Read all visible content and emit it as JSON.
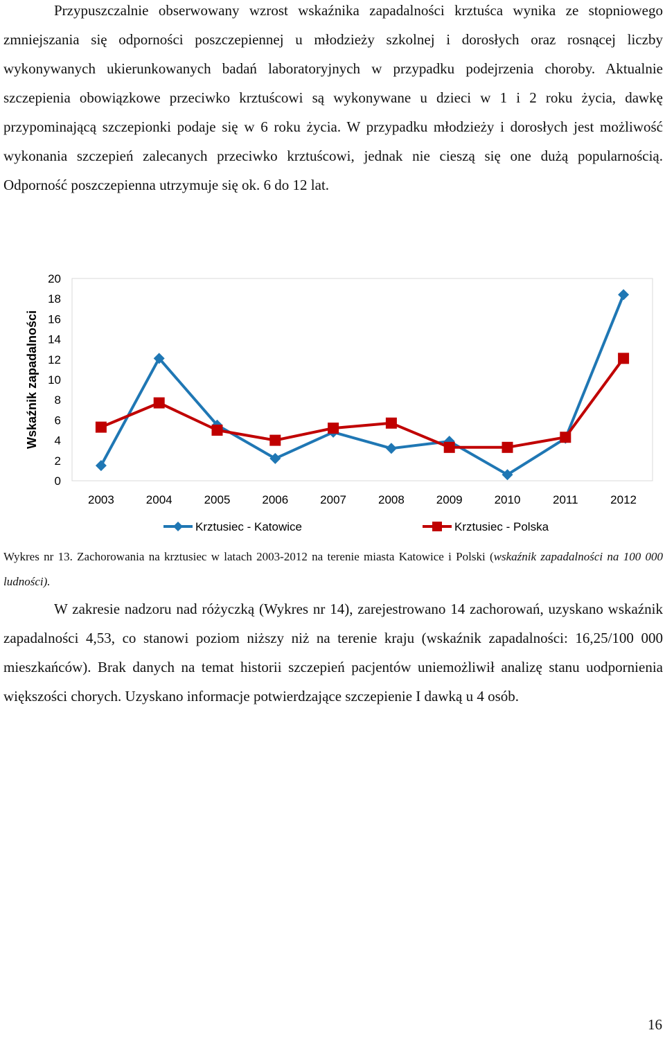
{
  "document": {
    "paragraph_1": "Przypuszczalnie obserwowany wzrost wskaźnika zapadalności krztuśca wynika ze stopniowego zmniejszania się odporności poszczepiennej u młodzieży szkolnej i dorosłych oraz rosnącej liczby wykonywanych ukierunkowanych badań laboratoryjnych w przypadku podejrzenia choroby. Aktualnie szczepienia obowiązkowe przeciwko krztuścowi są wykonywane u dzieci w 1 i 2 roku życia, dawkę przypominającą szczepionki podaje się w 6 roku życia. W przypadku młodzieży i dorosłych jest możliwość wykonania szczepień zalecanych przeciwko krztuścowi, jednak nie cieszą się one dużą popularnością. Odporność poszczepienna utrzymuje się ok. 6 do 12 lat.",
    "caption_normal": "Wykres nr 13. Zachorowania na krztusiec w latach 2003-2012 na terenie miasta Katowice i Polski (",
    "caption_italic": "wskaźnik zapadalności na 100 000 ludności).",
    "paragraph_2": "W zakresie nadzoru nad różyczką (Wykres nr 14), zarejestrowano 14 zachorowań, uzyskano wskaźnik zapadalności 4,53, co stanowi poziom niższy niż na terenie kraju (wskaźnik zapadalności: 16,25/100 000 mieszkańców). Brak danych na temat historii szczepień pacjentów uniemożliwił analizę stanu uodpornienia większości chorych. Uzyskano informacje potwierdzające szczepienie I dawką u 4 osób.",
    "page_number": "16"
  },
  "chart_data": {
    "type": "line",
    "title": "",
    "xlabel": "",
    "ylabel": "Wskaźnik zapadalności",
    "categories": [
      "2003",
      "2004",
      "2005",
      "2006",
      "2007",
      "2008",
      "2009",
      "2010",
      "2011",
      "2012"
    ],
    "ylim": [
      0,
      20
    ],
    "yticks": [
      "0",
      "2",
      "4",
      "6",
      "8",
      "10",
      "12",
      "14",
      "16",
      "18",
      "20"
    ],
    "grid": false,
    "legend_position": "bottom",
    "series": [
      {
        "name": "Krztusiec - Katowice",
        "color": "#1f77b4",
        "marker": "diamond",
        "values": [
          1.5,
          12.1,
          5.5,
          2.2,
          4.8,
          3.2,
          3.9,
          0.6,
          4.2,
          18.4
        ]
      },
      {
        "name": "Krztusiec - Polska",
        "color": "#c00000",
        "marker": "square",
        "values": [
          5.3,
          7.7,
          5.0,
          4.0,
          5.2,
          5.7,
          3.3,
          3.3,
          4.3,
          12.1
        ]
      }
    ]
  }
}
